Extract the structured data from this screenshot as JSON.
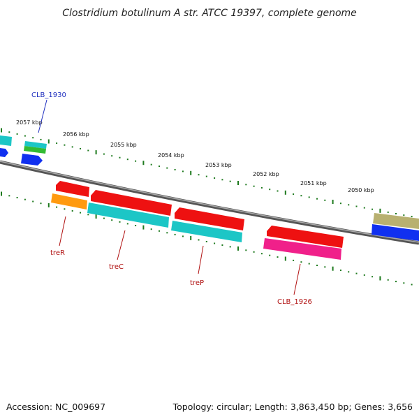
{
  "title": "Clostridium botulinum A str. ATCC 19397, complete genome",
  "accession": "Accession: NC_009697",
  "summary": "Topology: circular; Length: 3,863,450 bp; Genes: 3,656",
  "scale_labels": [
    "2057 kbp",
    "2056 kbp",
    "2055 kbp",
    "2054 kbp",
    "2053 kbp",
    "2052 kbp",
    "2051 kbp",
    "2050 kbp"
  ],
  "gene_labels": {
    "clb_1930": "CLB_1930",
    "treR": "treR",
    "treC": "treC",
    "treP": "treP",
    "clb_1926": "CLB_1926"
  },
  "colors": {
    "backbone": "#777777",
    "ticks": "#1e7a1e",
    "label_blue": "#1f2fbf",
    "label_red": "#b01010",
    "red": "#ee1111",
    "cyan": "#1cc6c6",
    "orange": "#ff9a10",
    "magenta": "#f0208a",
    "blue": "#1030f0",
    "green": "#33bb33",
    "olive": "#b8b070"
  }
}
